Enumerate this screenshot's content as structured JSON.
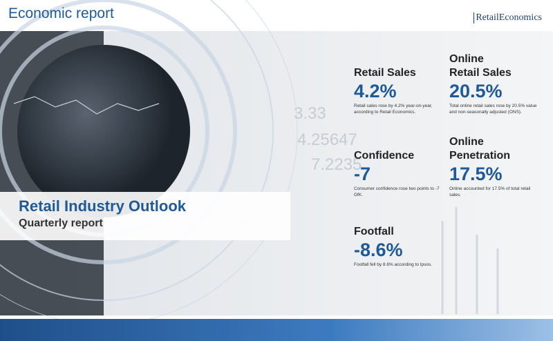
{
  "header": {
    "title": "Economic report",
    "logo": "RetailEconomics"
  },
  "cover": {
    "title": "Retail Industry Outlook",
    "subtitle": "Quarterly report"
  },
  "kpis": [
    {
      "label": "Retail Sales",
      "value": "4.2%",
      "description": "Retail sales rose by 4.2% year-on-year, according to Retail Economics."
    },
    {
      "label": "Online Retail Sales",
      "value": "20.5%",
      "description": "Total online retail sales rose by 20.5% value and non-seasonally adjusted (ONS)."
    },
    {
      "label": "Confidence",
      "value": "-7",
      "description": "Consumer confidence rose two points to -7 GfK."
    },
    {
      "label": "Online Penetration",
      "value": "17.5%",
      "description": "Online accounted for 17.5% of total retail sales."
    },
    {
      "label": "Footfall",
      "value": "-8.6%",
      "description": "Footfall fell by 8.6% according to Ipsos."
    }
  ]
}
